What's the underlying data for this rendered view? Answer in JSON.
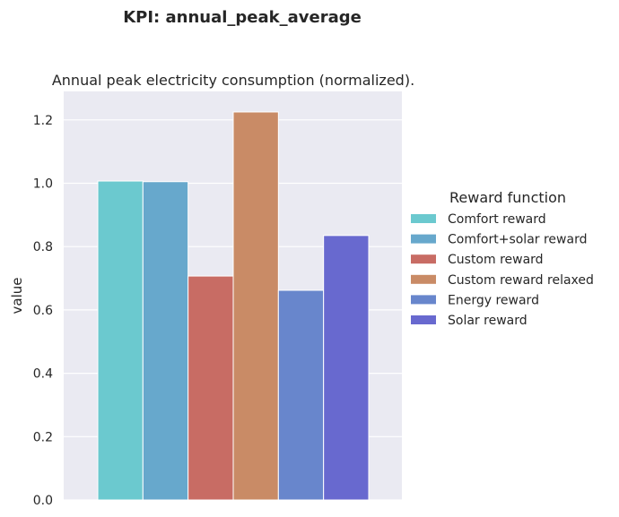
{
  "suptitle": "KPI: annual_peak_average",
  "chart_data": {
    "type": "bar",
    "title": "Annual peak electricity consumption (normalized).",
    "xlabel": "",
    "ylabel": "value",
    "ylim": [
      0,
      1.29
    ],
    "yticks": [
      0.0,
      0.2,
      0.4,
      0.6,
      0.8,
      1.0,
      1.2
    ],
    "ytick_labels": [
      "0.0",
      "0.2",
      "0.4",
      "0.6",
      "0.8",
      "1.0",
      "1.2"
    ],
    "grid": true,
    "legend_title": "Reward function",
    "legend_position": "right",
    "series": [
      {
        "name": "Comfort reward",
        "value": 1.007,
        "color": "#6bc9cf"
      },
      {
        "name": "Comfort+solar reward",
        "value": 1.005,
        "color": "#67a8cc"
      },
      {
        "name": "Custom reward",
        "value": 0.707,
        "color": "#c86c64"
      },
      {
        "name": "Custom reward relaxed",
        "value": 1.225,
        "color": "#c98b66"
      },
      {
        "name": "Energy reward",
        "value": 0.662,
        "color": "#6886cc"
      },
      {
        "name": "Solar reward",
        "value": 0.835,
        "color": "#6869cf"
      }
    ]
  }
}
